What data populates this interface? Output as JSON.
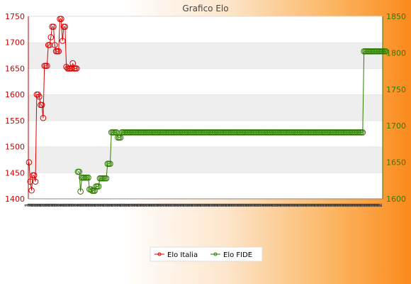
{
  "chart_data": {
    "type": "line",
    "title": "Grafico Elo",
    "y_left_lim": [
      1400,
      1750
    ],
    "y_left_ticks": [
      "1400",
      "1450",
      "1500",
      "1550",
      "1600",
      "1650",
      "1700",
      "1750"
    ],
    "y_right_lim": [
      1600,
      1850
    ],
    "y_right_ticks": [
      "1600",
      "1650",
      "1700",
      "1750",
      "1800",
      "1850"
    ],
    "grid": "horizontal, alternating bands",
    "legend_position": "bottom-center",
    "series": [
      {
        "name": "Elo Italia",
        "axis": "left",
        "color": "#dd0000",
        "x_start": 0,
        "values": [
          1470,
          1433,
          1416,
          1445,
          1445,
          1433,
          1600,
          1600,
          1596,
          1580,
          1580,
          1555,
          1655,
          1655,
          1655,
          1695,
          1695,
          1710,
          1730,
          1730,
          1695,
          1683,
          1683,
          1683,
          1745,
          1745,
          1703,
          1730,
          1730,
          1653,
          1650,
          1650,
          1650,
          1650,
          1660,
          1650,
          1650,
          1650
        ]
      },
      {
        "name": "Elo FIDE",
        "axis": "right",
        "color": "#2e7d00",
        "x_start": 38,
        "values": [
          1637,
          1637,
          1610,
          1629,
          1629,
          1629,
          1629,
          1629,
          1629,
          1613,
          1613,
          1611,
          1611,
          1611,
          1617,
          1617,
          1617,
          1628,
          1628,
          1628,
          1628,
          1628,
          1628,
          1648,
          1648,
          1648,
          1691,
          1691,
          1691,
          1691,
          1691,
          1684,
          1684,
          1684,
          1691,
          1691,
          1691,
          1691,
          1691,
          1691,
          1691,
          1691,
          1691,
          1691,
          1691,
          1691,
          1691,
          1691,
          1691,
          1691,
          1691,
          1691,
          1691,
          1691,
          1691,
          1691,
          1691,
          1691,
          1691,
          1691,
          1691,
          1691,
          1691,
          1691,
          1691,
          1691,
          1691,
          1691,
          1691,
          1691,
          1691,
          1691,
          1691,
          1691,
          1691,
          1691,
          1691,
          1691,
          1691,
          1691,
          1691,
          1691,
          1691,
          1691,
          1691,
          1691,
          1691,
          1691,
          1691,
          1691,
          1691,
          1691,
          1691,
          1691,
          1691,
          1691,
          1691,
          1691,
          1691,
          1691,
          1691,
          1691,
          1691,
          1691,
          1691,
          1691,
          1691,
          1691,
          1691,
          1691,
          1691,
          1691,
          1691,
          1691,
          1691,
          1691,
          1691,
          1691,
          1691,
          1691,
          1691,
          1691,
          1691,
          1691,
          1691,
          1691,
          1691,
          1691,
          1691,
          1691,
          1691,
          1691,
          1691,
          1691,
          1691,
          1691,
          1691,
          1691,
          1691,
          1691,
          1691,
          1691,
          1691,
          1691,
          1691,
          1691,
          1691,
          1691,
          1691,
          1691,
          1691,
          1691,
          1691,
          1691,
          1691,
          1691,
          1691,
          1691,
          1691,
          1691,
          1691,
          1691,
          1691,
          1691,
          1691,
          1691,
          1691,
          1691,
          1691,
          1691,
          1691,
          1691,
          1691,
          1691,
          1691,
          1691,
          1691,
          1691,
          1691,
          1691,
          1691,
          1691,
          1691,
          1691,
          1691,
          1691,
          1691,
          1691,
          1691,
          1691,
          1691,
          1691,
          1691,
          1691,
          1691,
          1691,
          1691,
          1691,
          1691,
          1691,
          1691,
          1691,
          1691,
          1691,
          1691,
          1691,
          1691,
          1691,
          1691,
          1691,
          1691,
          1691,
          1691,
          1691,
          1691,
          1691,
          1691,
          1691,
          1691,
          1691,
          1691,
          1691,
          1802,
          1802,
          1802,
          1802,
          1802,
          1802,
          1802,
          1802,
          1802,
          1802,
          1802,
          1802,
          1802,
          1802,
          1802,
          1802,
          1802,
          1802
        ]
      }
    ],
    "x_tick_labels": [
      "1",
      "1",
      "2",
      "2",
      "2",
      "2",
      "2",
      "2",
      "2",
      "2",
      "2",
      "2",
      "2",
      "2",
      "2",
      "2",
      "2",
      "2",
      "2",
      "2",
      "2",
      "2",
      "2",
      "2",
      "2",
      "2",
      "2",
      "2",
      "2",
      "2",
      "2",
      "2",
      "2",
      "2",
      "2",
      "2",
      "2",
      "2",
      "2",
      "2",
      "2",
      "2",
      "2",
      "2",
      "2",
      "2",
      "2",
      "2",
      "2",
      "2",
      "2",
      "2",
      "2",
      "2",
      "2",
      "2",
      "2",
      "2",
      "2",
      "2",
      "2",
      "2",
      "2",
      "2",
      "2",
      "2",
      "2",
      "2",
      "2",
      "2",
      "2",
      "2",
      "2",
      "2",
      "2",
      "2",
      "2",
      "2",
      "2",
      "2",
      "2",
      "2",
      "2",
      "2",
      "2",
      "2",
      "2",
      "2",
      "2",
      "2",
      "2",
      "2",
      "2",
      "2",
      "2",
      "2",
      "2",
      "2",
      "2",
      "2",
      "2",
      "2",
      "2",
      "2",
      "2",
      "2",
      "2",
      "2",
      "2",
      "2",
      "2",
      "2",
      "2",
      "2",
      "2",
      "2",
      "2",
      "2",
      "2",
      "2",
      "2",
      "2",
      "2",
      "2",
      "2",
      "2",
      "2",
      "2",
      "2",
      "2",
      "2",
      "2",
      "2",
      "2",
      "2",
      "2",
      "2",
      "2",
      "2",
      "2",
      "2",
      "2",
      "2",
      "2",
      "2",
      "2",
      "2",
      "2",
      "2",
      "2",
      "2",
      "2",
      "2",
      "2",
      "2",
      "2",
      "2",
      "2",
      "2",
      "2",
      "2",
      "2",
      "2",
      "2",
      "2",
      "2",
      "2",
      "2",
      "2",
      "2",
      "2",
      "2",
      "2",
      "2",
      "2",
      "2",
      "2",
      "2",
      "2",
      "2",
      "2",
      "2",
      "2",
      "2",
      "2",
      "2",
      "2",
      "2",
      "2",
      "2",
      "2",
      "2",
      "2",
      "2",
      "2",
      "2",
      "2",
      "2",
      "2",
      "2",
      "2",
      "2",
      "2",
      "2",
      "2",
      "2",
      "2",
      "2",
      "2",
      "2",
      "2",
      "2",
      "2",
      "2",
      "2",
      "2",
      "2",
      "2",
      "2",
      "2",
      "2",
      "2",
      "2",
      "2",
      "2",
      "2",
      "2",
      "2",
      "2",
      "2",
      "2",
      "2",
      "2",
      "2",
      "2",
      "2",
      "2",
      "2",
      "2",
      "2",
      "2",
      "2",
      "2",
      "2",
      "2",
      "2",
      "2",
      "2",
      "2",
      "2",
      "2",
      "2",
      "2",
      "2",
      "2",
      "2",
      "2",
      "2",
      "2",
      "2",
      "2",
      "2",
      "2",
      "2",
      "2",
      "2",
      "2",
      "2",
      "2",
      "2",
      "2",
      "2",
      "2",
      "2",
      "2",
      "2",
      "2",
      "2",
      "2",
      "2",
      "2",
      "2",
      "2",
      "2",
      "2",
      "2",
      "2",
      "2",
      "2",
      "2",
      "2",
      "2"
    ],
    "x_count": 275
  }
}
